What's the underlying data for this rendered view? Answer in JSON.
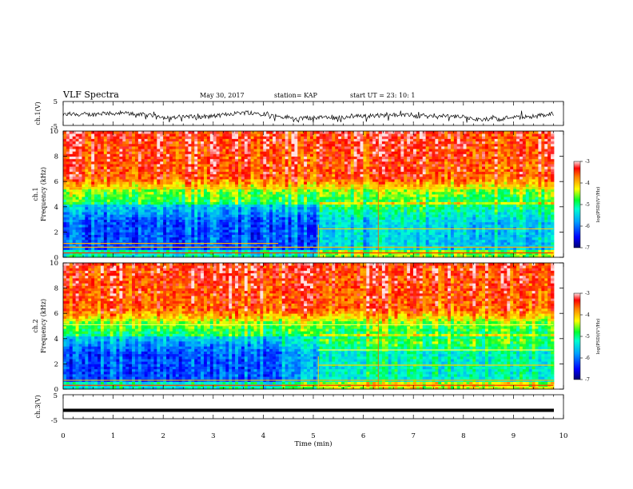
{
  "header": {
    "title": "VLF Spectra",
    "date": "May 30, 2017",
    "station": "station= KAP",
    "start": "start  UT  =   23: 10: 1"
  },
  "chart_data": {
    "type": "heatmap",
    "xlabel": "Time  (min)",
    "xlim": [
      0,
      10
    ],
    "x_ticks": [
      "0",
      "1",
      "2",
      "3",
      "4",
      "5",
      "6",
      "7",
      "8",
      "9",
      "10"
    ],
    "panels": [
      {
        "kind": "waveform",
        "ylabel": "ch.1(V)",
        "ylim": [
          -5,
          5
        ],
        "y_ticks": [
          "5",
          "-5"
        ]
      },
      {
        "kind": "spectrogram",
        "ylabel_top": "ch.1",
        "ylabel": "Frequency  (kHz)",
        "ylim": [
          0,
          10
        ],
        "y_ticks": [
          "0",
          "2",
          "4",
          "6",
          "8",
          "10"
        ],
        "colorbar": {
          "label": "log(PSD)(V²/Hz)",
          "range": [
            -7,
            -3
          ],
          "ticks": [
            "-3",
            "-4",
            "-5",
            "-6",
            "-7"
          ]
        }
      },
      {
        "kind": "spectrogram",
        "ylabel_top": "ch.2",
        "ylabel": "Frequency  (kHz)",
        "ylim": [
          0,
          10
        ],
        "y_ticks": [
          "0",
          "2",
          "4",
          "6",
          "8",
          "10"
        ],
        "colorbar": {
          "label": "log(PSD)(V²/Hz)",
          "range": [
            -7,
            -3
          ],
          "ticks": [
            "-3",
            "-4",
            "-5",
            "-6",
            "-7"
          ]
        }
      },
      {
        "kind": "waveform",
        "ylabel": "ch.3(V)",
        "ylim": [
          -5,
          5
        ],
        "y_ticks": [
          "5",
          "-5"
        ],
        "level_volts": -1.5
      }
    ]
  }
}
